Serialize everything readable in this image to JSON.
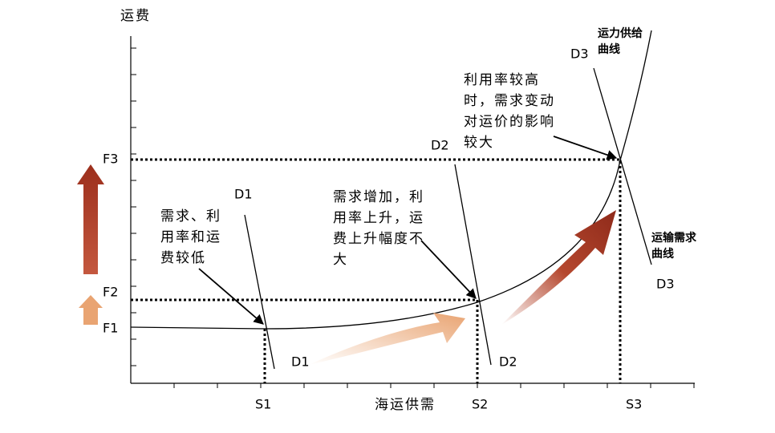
{
  "axes": {
    "y_label": "运费",
    "x_label": "海运供需"
  },
  "price_levels": [
    "F1",
    "F2",
    "F3"
  ],
  "supply_levels": [
    "S1",
    "S2",
    "S3"
  ],
  "demand_labels": {
    "d1_top": "D1",
    "d1_bottom": "D1",
    "d2_top": "D2",
    "d2_bottom": "D2",
    "d3_top": "D3",
    "d3_bottom": "D3"
  },
  "curve_labels": {
    "supply": [
      "运力供给",
      "曲线"
    ],
    "demand": [
      "运输需求",
      "曲线"
    ]
  },
  "annotations": [
    [
      "需求、利",
      "用率和运",
      "费较低"
    ],
    [
      "需求增加，利",
      "用率上升，运",
      "费上升幅度不",
      "大"
    ],
    [
      "利用率较高",
      "时，需求变动",
      "对运价的影响",
      "较大"
    ]
  ]
}
